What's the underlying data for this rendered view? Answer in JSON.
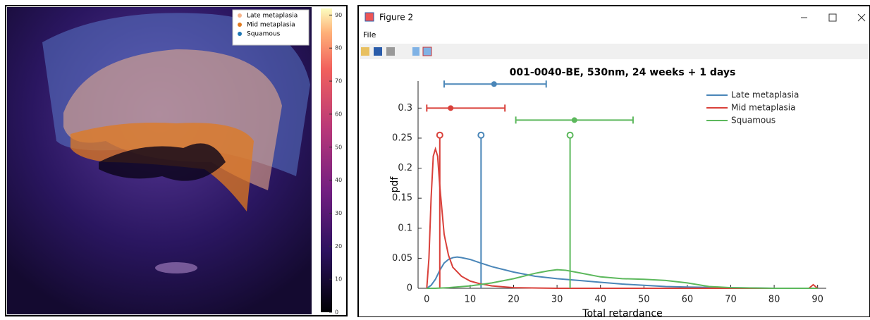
{
  "image_panel": {
    "legend": [
      {
        "label": "Late metaplasia",
        "color": "#f6b48a"
      },
      {
        "label": "Mid metaplasia",
        "color": "#e07a1f"
      },
      {
        "label": "Squamous",
        "color": "#1f77b4"
      }
    ],
    "colorbar": {
      "lim": [
        0,
        92
      ],
      "ticks": [
        0,
        10,
        20,
        30,
        40,
        50,
        60,
        70,
        80,
        90
      ]
    }
  },
  "window": {
    "title": "Figure 2",
    "menu": [
      "File"
    ]
  },
  "chart_data": {
    "type": "line",
    "title": "001-0040-BE, 530nm, 24 weeks +  1 days",
    "xlabel": "Total retardance",
    "ylabel": "pdf",
    "xlim": [
      -2,
      92
    ],
    "xticks": [
      0,
      10,
      20,
      30,
      40,
      50,
      60,
      70,
      80,
      90
    ],
    "ylim": [
      0,
      0.345
    ],
    "yticks": [
      0,
      0.05,
      0.1,
      0.15,
      0.2,
      0.25,
      0.3
    ],
    "legend": "upper right",
    "series": [
      {
        "name": "Late metaplasia",
        "color": "#4a86b8",
        "x": [
          0,
          1,
          2,
          3,
          4,
          5,
          6,
          7,
          8,
          10,
          12,
          15,
          20,
          25,
          30,
          35,
          40,
          45,
          50,
          55,
          60,
          70,
          80,
          90
        ],
        "values": [
          0,
          0.005,
          0.015,
          0.03,
          0.042,
          0.048,
          0.051,
          0.052,
          0.051,
          0.048,
          0.043,
          0.036,
          0.027,
          0.02,
          0.016,
          0.013,
          0.01,
          0.007,
          0.005,
          0.003,
          0.002,
          0.001,
          0,
          0
        ],
        "median": {
          "x": 12.5,
          "y": 0.255
        },
        "errorbar": {
          "y": 0.34,
          "center": 15.5,
          "low": 4,
          "high": 27.5
        }
      },
      {
        "name": "Mid metaplasia",
        "color": "#d9403a",
        "x": [
          0,
          0.5,
          1,
          1.5,
          2,
          2.5,
          3,
          3.5,
          4,
          5,
          6,
          8,
          10,
          12,
          15,
          20,
          30,
          50,
          70,
          85,
          88,
          89,
          90
        ],
        "values": [
          0,
          0.05,
          0.15,
          0.22,
          0.232,
          0.22,
          0.17,
          0.13,
          0.09,
          0.055,
          0.035,
          0.02,
          0.012,
          0.008,
          0.004,
          0.001,
          0,
          0,
          0,
          0,
          0,
          0.006,
          0
        ],
        "median": {
          "x": 3,
          "y": 0.255
        },
        "errorbar": {
          "y": 0.3,
          "center": 5.5,
          "low": 0,
          "high": 18
        }
      },
      {
        "name": "Squamous",
        "color": "#5cb85c",
        "x": [
          0,
          2,
          5,
          10,
          15,
          20,
          25,
          28,
          30,
          32,
          35,
          40,
          45,
          50,
          55,
          60,
          65,
          70,
          80,
          90
        ],
        "values": [
          0,
          0,
          0.001,
          0.004,
          0.009,
          0.016,
          0.025,
          0.029,
          0.031,
          0.03,
          0.026,
          0.019,
          0.016,
          0.015,
          0.013,
          0.009,
          0.003,
          0.001,
          0,
          0
        ],
        "median": {
          "x": 33,
          "y": 0.255
        },
        "errorbar": {
          "y": 0.28,
          "center": 34,
          "low": 20.5,
          "high": 47.5
        }
      }
    ]
  }
}
